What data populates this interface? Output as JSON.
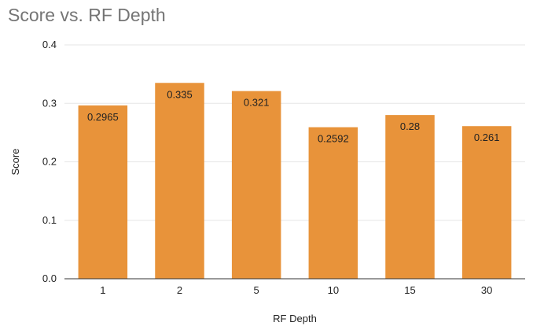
{
  "chart_data": {
    "type": "bar",
    "title": "Score vs. RF Depth",
    "xlabel": "RF Depth",
    "ylabel": "Score",
    "categories": [
      "1",
      "2",
      "5",
      "10",
      "15",
      "30"
    ],
    "values": [
      0.2965,
      0.335,
      0.321,
      0.2592,
      0.28,
      0.261
    ],
    "data_labels": [
      "0.2965",
      "0.335",
      "0.321",
      "0.2592",
      "0.28",
      "0.261"
    ],
    "ylim": [
      0,
      0.4
    ],
    "yticks": [
      "0.0",
      "0.1",
      "0.2",
      "0.3",
      "0.4"
    ],
    "grid": true,
    "legend": "none",
    "colors": {
      "bar": "#E8933A",
      "grid": "#e6e6e6",
      "axis": "#333333",
      "title": "#757575"
    }
  }
}
